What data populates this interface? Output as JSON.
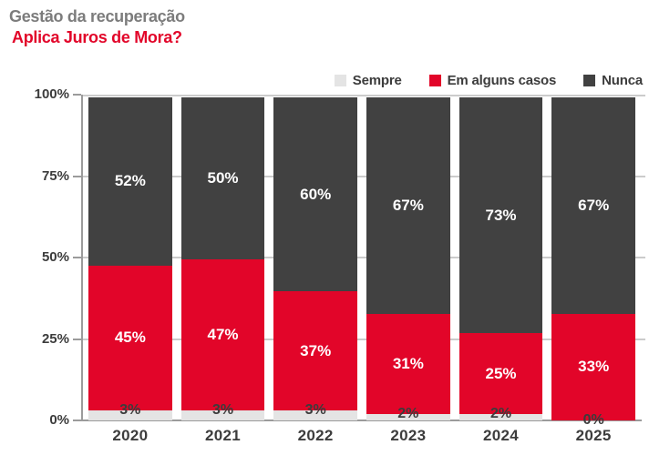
{
  "header": {
    "title": "Gestão da recuperação",
    "subtitle": "Aplica Juros de Mora?"
  },
  "colors": {
    "sempre": "#e4e4e4",
    "em_alguns_casos": "#e20529",
    "nunca": "#414141",
    "title_gray": "#7c7c7c",
    "subtitle_red": "#e20529",
    "axis": "#9b9b9b",
    "gridline": "#cbcbcb",
    "label_dark": "#3c3c3c",
    "label_white": "#ffffff"
  },
  "chart_data": {
    "type": "bar",
    "stacked": true,
    "title": "Aplica Juros de Mora?",
    "xlabel": "",
    "ylabel": "",
    "categories": [
      "2020",
      "2021",
      "2022",
      "2023",
      "2024",
      "2025"
    ],
    "series": [
      {
        "name": "Sempre",
        "color": "#e4e4e4",
        "values": [
          3,
          3,
          3,
          2,
          2,
          0
        ],
        "label_style": "dark"
      },
      {
        "name": "Em alguns casos",
        "color": "#e20529",
        "values": [
          45,
          47,
          37,
          31,
          25,
          33
        ],
        "label_style": "white"
      },
      {
        "name": "Nunca",
        "color": "#414141",
        "values": [
          52,
          50,
          60,
          67,
          73,
          67
        ],
        "label_style": "white"
      }
    ],
    "value_label_suffix": "%",
    "ylim": [
      0,
      100
    ],
    "y_ticks": [
      {
        "value": 0,
        "label": "0%"
      },
      {
        "value": 25,
        "label": "25%"
      },
      {
        "value": 50,
        "label": "50%"
      },
      {
        "value": 75,
        "label": "75%"
      },
      {
        "value": 100,
        "label": "100%"
      }
    ],
    "grid": true,
    "legend_position": "top-right"
  }
}
